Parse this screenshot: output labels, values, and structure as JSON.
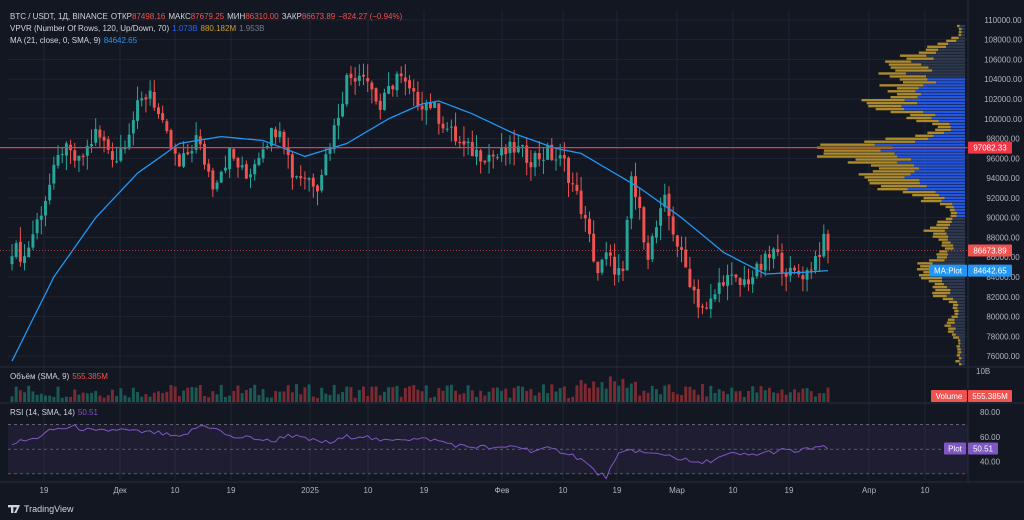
{
  "symbol": {
    "name": "BTC / USDT, 1Д, BINANCE",
    "open_label": "ОТКР",
    "open": "87498.16",
    "high_label": "МАКС",
    "high": "87679.25",
    "low_label": "МИН",
    "low": "86310.00",
    "close_label": "ЗАКР",
    "close": "86673.89",
    "change": "−824.27 (−0.94%)"
  },
  "indicators": {
    "vpvr_label": "VPVR (Number Of Rows, 120, Up/Down, 70)",
    "vpvr_v1": "1.073B",
    "vpvr_v2": "880.182M",
    "vpvr_v3": "1.953B",
    "ma_label": "MA (21, close, 0, SMA, 9)",
    "ma_value": "84642.65",
    "volume_label": "Объём (SMA, 9)",
    "volume_value": "555.385M",
    "rsi_label": "RSI (14, SMA, 14)",
    "rsi_value": "50.51"
  },
  "price_axis": {
    "ticks": [
      "110000.00",
      "108000.00",
      "106000.00",
      "104000.00",
      "102000.00",
      "100000.00",
      "98000.00",
      "96000.00",
      "94000.00",
      "92000.00",
      "90000.00",
      "88000.00",
      "86000.00",
      "84000.00",
      "82000.00",
      "80000.00",
      "78000.00",
      "76000.00"
    ],
    "range": [
      75000,
      111000
    ]
  },
  "price_labels": {
    "hline_value": "97082.33",
    "close_value": "86673.89",
    "ma_tag": "MA:Plot",
    "ma_value": "84642.65"
  },
  "volume_axis": {
    "tick": "10B",
    "tag": "Volume",
    "value": "555.385M"
  },
  "rsi_axis": {
    "ticks": [
      "80.00",
      "60.00",
      "40.00"
    ],
    "tag": "Plot",
    "value": "50.51"
  },
  "time_axis": {
    "ticks": [
      "19",
      "Дек",
      "10",
      "19",
      "2025",
      "10",
      "19",
      "Фев",
      "10",
      "19",
      "Мар",
      "10",
      "19",
      "Апр",
      "10"
    ]
  },
  "branding": {
    "text": "TradingView"
  },
  "colors": {
    "up": "#26a69a",
    "down": "#ef5350",
    "ma": "#2196f3",
    "hline": "#f23645",
    "rsi": "#7e57c2",
    "vp_up": "#2962ff",
    "vp_down": "#c8a030"
  },
  "chart_data": {
    "type": "candlestick",
    "title": "BTC / USDT, 1Д, BINANCE",
    "key_points": [
      {
        "i": 0,
        "c": 87000
      },
      {
        "i": 3,
        "c": 86000
      },
      {
        "i": 8,
        "c": 92000
      },
      {
        "i": 12,
        "c": 97000
      },
      {
        "i": 16,
        "c": 95500
      },
      {
        "i": 20,
        "c": 98500
      },
      {
        "i": 25,
        "c": 96000
      },
      {
        "i": 30,
        "c": 101000
      },
      {
        "i": 33,
        "c": 103000
      },
      {
        "i": 36,
        "c": 99000
      },
      {
        "i": 40,
        "c": 95000
      },
      {
        "i": 44,
        "c": 98000
      },
      {
        "i": 48,
        "c": 93500
      },
      {
        "i": 52,
        "c": 96500
      },
      {
        "i": 56,
        "c": 94000
      },
      {
        "i": 60,
        "c": 97500
      },
      {
        "i": 64,
        "c": 99500
      },
      {
        "i": 67,
        "c": 94500
      },
      {
        "i": 70,
        "c": 94200
      },
      {
        "i": 73,
        "c": 93500
      },
      {
        "i": 77,
        "c": 99000
      },
      {
        "i": 80,
        "c": 104000
      },
      {
        "i": 84,
        "c": 105000
      },
      {
        "i": 88,
        "c": 101000
      },
      {
        "i": 92,
        "c": 104500
      },
      {
        "i": 96,
        "c": 102000
      },
      {
        "i": 100,
        "c": 101500
      },
      {
        "i": 104,
        "c": 99000
      },
      {
        "i": 108,
        "c": 97000
      },
      {
        "i": 112,
        "c": 96500
      },
      {
        "i": 116,
        "c": 96200
      },
      {
        "i": 120,
        "c": 97000
      },
      {
        "i": 124,
        "c": 96000
      },
      {
        "i": 128,
        "c": 96500
      },
      {
        "i": 132,
        "c": 95500
      },
      {
        "i": 136,
        "c": 91000
      },
      {
        "i": 140,
        "c": 84500
      },
      {
        "i": 142,
        "c": 86000
      },
      {
        "i": 146,
        "c": 84000
      },
      {
        "i": 148,
        "c": 94000
      },
      {
        "i": 152,
        "c": 86500
      },
      {
        "i": 156,
        "c": 91500
      },
      {
        "i": 160,
        "c": 86000
      },
      {
        "i": 164,
        "c": 81500
      },
      {
        "i": 166,
        "c": 80500
      },
      {
        "i": 170,
        "c": 84000
      },
      {
        "i": 174,
        "c": 83200
      },
      {
        "i": 178,
        "c": 84500
      },
      {
        "i": 182,
        "c": 86500
      },
      {
        "i": 186,
        "c": 84200
      },
      {
        "i": 190,
        "c": 84500
      },
      {
        "i": 192,
        "c": 86000
      },
      {
        "i": 194,
        "c": 87500
      },
      {
        "i": 195,
        "c": 86673
      }
    ],
    "ma21_points": [
      {
        "i": 0,
        "v": 75500
      },
      {
        "i": 10,
        "v": 84000
      },
      {
        "i": 20,
        "v": 90000
      },
      {
        "i": 30,
        "v": 94500
      },
      {
        "i": 40,
        "v": 97500
      },
      {
        "i": 50,
        "v": 98200
      },
      {
        "i": 60,
        "v": 97800
      },
      {
        "i": 70,
        "v": 96200
      },
      {
        "i": 80,
        "v": 97500
      },
      {
        "i": 90,
        "v": 100000
      },
      {
        "i": 98,
        "v": 101500
      },
      {
        "i": 102,
        "v": 101800
      },
      {
        "i": 110,
        "v": 100500
      },
      {
        "i": 120,
        "v": 98500
      },
      {
        "i": 130,
        "v": 97000
      },
      {
        "i": 136,
        "v": 96500
      },
      {
        "i": 142,
        "v": 95000
      },
      {
        "i": 150,
        "v": 93000
      },
      {
        "i": 160,
        "v": 90000
      },
      {
        "i": 170,
        "v": 86500
      },
      {
        "i": 180,
        "v": 84300
      },
      {
        "i": 190,
        "v": 84500
      },
      {
        "i": 195,
        "v": 84642
      }
    ],
    "hline": 97082.33,
    "rsi_points": [
      {
        "i": 0,
        "v": 55
      },
      {
        "i": 5,
        "v": 58
      },
      {
        "i": 10,
        "v": 66
      },
      {
        "i": 15,
        "v": 68
      },
      {
        "i": 20,
        "v": 64
      },
      {
        "i": 25,
        "v": 66
      },
      {
        "i": 30,
        "v": 64
      },
      {
        "i": 35,
        "v": 63
      },
      {
        "i": 40,
        "v": 59
      },
      {
        "i": 45,
        "v": 69
      },
      {
        "i": 48,
        "v": 68
      },
      {
        "i": 52,
        "v": 60
      },
      {
        "i": 58,
        "v": 59
      },
      {
        "i": 62,
        "v": 56
      },
      {
        "i": 66,
        "v": 62
      },
      {
        "i": 70,
        "v": 58
      },
      {
        "i": 76,
        "v": 55
      },
      {
        "i": 80,
        "v": 60
      },
      {
        "i": 84,
        "v": 61
      },
      {
        "i": 88,
        "v": 56
      },
      {
        "i": 92,
        "v": 59
      },
      {
        "i": 96,
        "v": 58
      },
      {
        "i": 100,
        "v": 58
      },
      {
        "i": 104,
        "v": 55
      },
      {
        "i": 108,
        "v": 52
      },
      {
        "i": 112,
        "v": 52
      },
      {
        "i": 116,
        "v": 50
      },
      {
        "i": 120,
        "v": 53
      },
      {
        "i": 124,
        "v": 49
      },
      {
        "i": 128,
        "v": 50
      },
      {
        "i": 132,
        "v": 48
      },
      {
        "i": 136,
        "v": 42
      },
      {
        "i": 140,
        "v": 30
      },
      {
        "i": 142,
        "v": 28
      },
      {
        "i": 145,
        "v": 45
      },
      {
        "i": 148,
        "v": 50
      },
      {
        "i": 152,
        "v": 46
      },
      {
        "i": 156,
        "v": 46
      },
      {
        "i": 160,
        "v": 42
      },
      {
        "i": 164,
        "v": 38
      },
      {
        "i": 168,
        "v": 42
      },
      {
        "i": 172,
        "v": 46
      },
      {
        "i": 176,
        "v": 45
      },
      {
        "i": 180,
        "v": 47
      },
      {
        "i": 184,
        "v": 49
      },
      {
        "i": 188,
        "v": 48
      },
      {
        "i": 192,
        "v": 52
      },
      {
        "i": 195,
        "v": 50.5
      }
    ],
    "rsi_ylim": [
      25,
      85
    ],
    "rsi_bands": [
      70,
      50,
      30
    ]
  }
}
